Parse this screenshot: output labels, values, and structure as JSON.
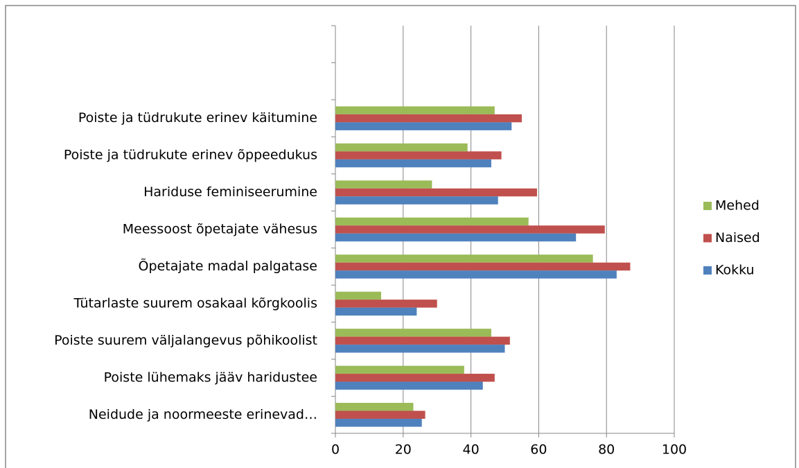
{
  "chart_data": {
    "type": "bar",
    "orientation": "horizontal",
    "categories": [
      null,
      null,
      "Poiste ja tüdrukute erinev käitumine",
      "Poiste ja tüdrukute erinev õppeedukus",
      "Hariduse feminiseerumine",
      "Meessoost õpetajate vähesus",
      "Õpetajate madal palgatase",
      "Tütarlaste suurem osakaal kõrgkoolis",
      "Poiste suurem väljalangevus põhikoolist",
      "Poiste lühemaks jääv haridustee",
      "Neidude ja noormeeste erinevad…"
    ],
    "series": [
      {
        "name": "Mehed",
        "color": "#9bbb59",
        "values": [
          null,
          null,
          47,
          39,
          28.5,
          57,
          76,
          13.5,
          46,
          38,
          23
        ]
      },
      {
        "name": "Naised",
        "color": "#c0504d",
        "values": [
          null,
          null,
          55,
          49,
          59.5,
          79.5,
          87,
          30,
          51.5,
          47,
          26.5
        ]
      },
      {
        "name": "Kokku",
        "color": "#4f81bd",
        "values": [
          null,
          null,
          52,
          46,
          48,
          71,
          83,
          24,
          50,
          43.5,
          25.5
        ]
      }
    ],
    "xlim": [
      0,
      100
    ],
    "xticks": [
      0,
      20,
      40,
      60,
      80,
      100
    ],
    "grid": true,
    "legend": "right"
  }
}
